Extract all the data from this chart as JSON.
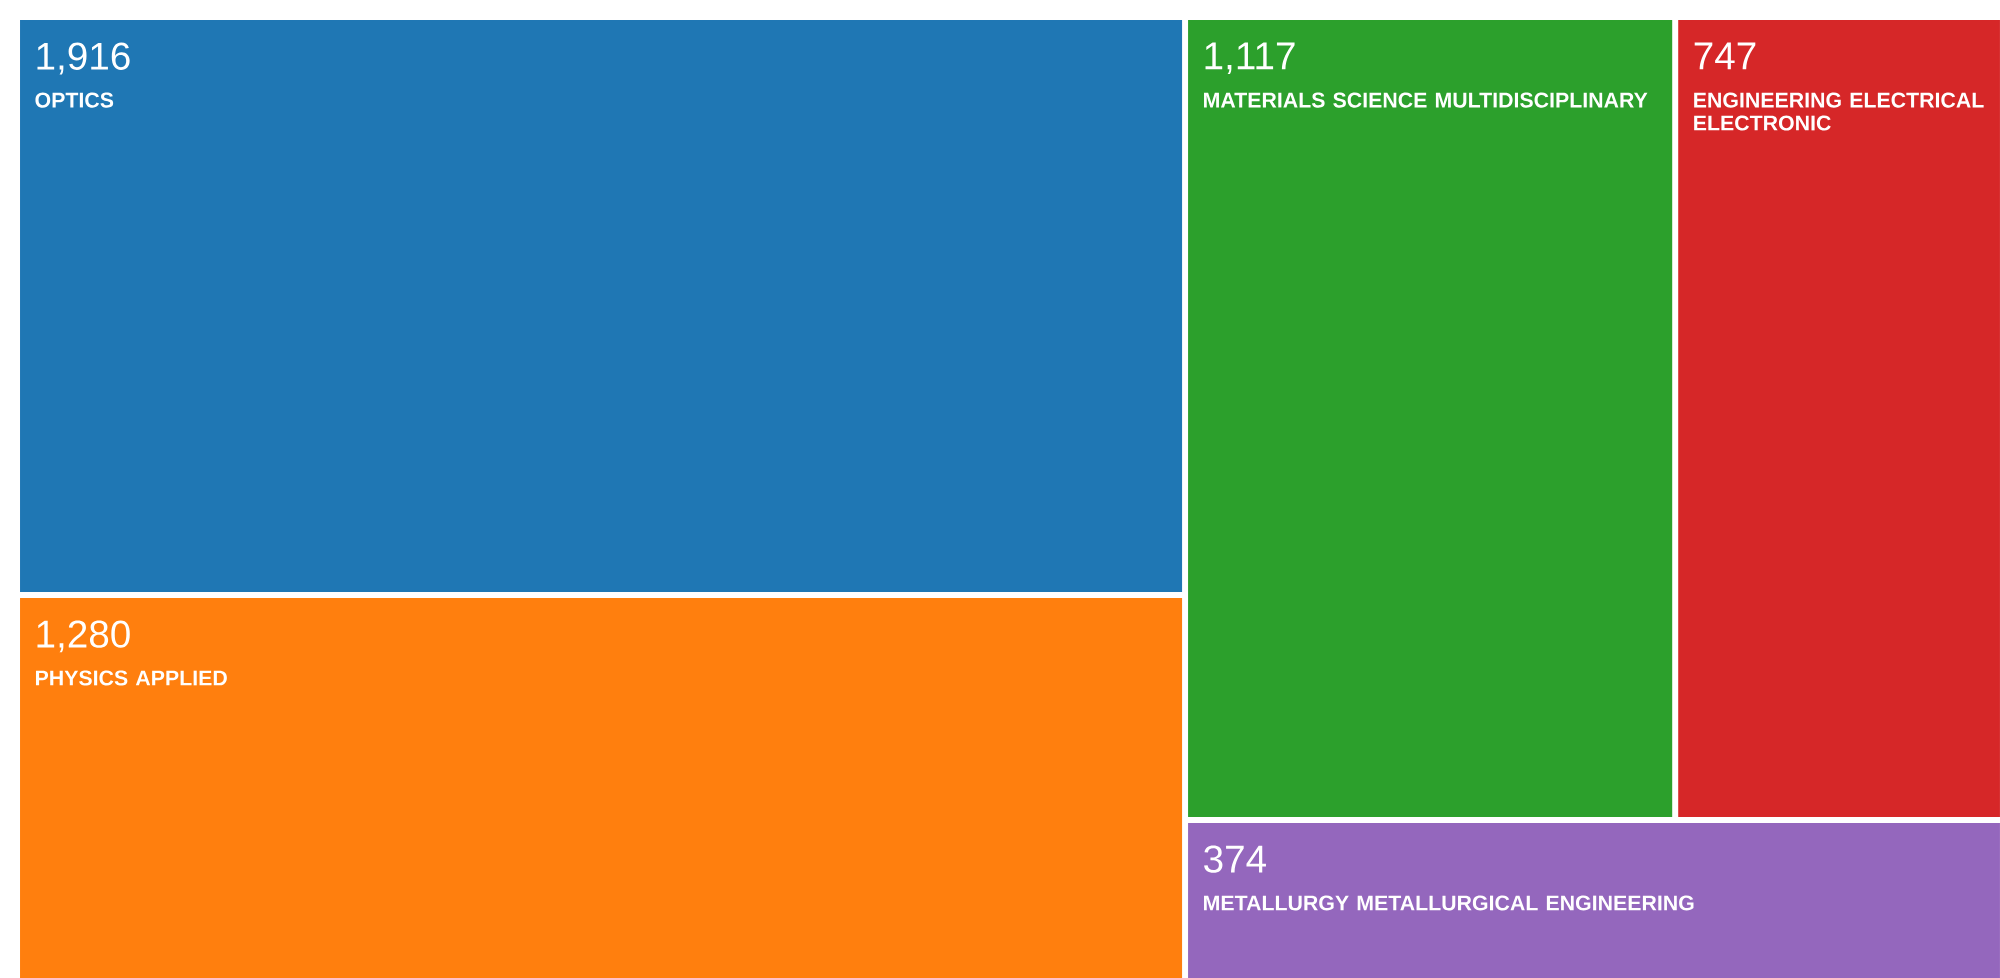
{
  "chart_data": {
    "type": "other",
    "categories": [
      "OPTICS",
      "PHYSICS APPLIED",
      "MATERIALS SCIENCE MULTIDISCIPLINARY",
      "ENGINEERING ELECTRICAL ELECTRONIC",
      "METALLURGY METALLURGICAL ENGINEERING"
    ],
    "values": [
      1916,
      1280,
      1117,
      747,
      374
    ],
    "value_labels": [
      "1,916",
      "1,280",
      "1,117",
      "747",
      "374"
    ],
    "colors": [
      "#1f77b4",
      "#ff7f0e",
      "#2ca02c",
      "#d62728",
      "#9467bd"
    ]
  }
}
